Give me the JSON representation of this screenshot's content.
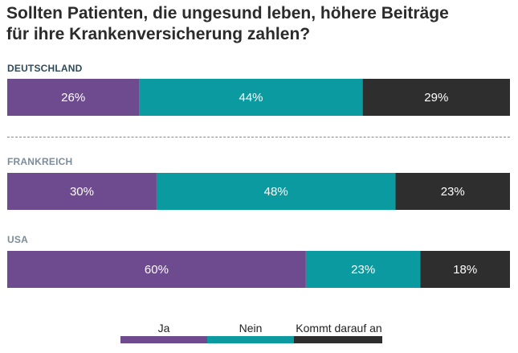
{
  "title_line1": "Sollten Patienten, die ungesund leben, höhere Beiträge",
  "title_line2": "für ihre Krankenversicherung zahlen?",
  "chart_data": {
    "type": "bar",
    "orientation": "horizontal",
    "stacked": true,
    "title": "Sollten Patienten, die ungesund leben, höhere Beiträge für ihre Krankenversicherung zahlen?",
    "categories": [
      "DEUTSCHLAND",
      "FRANKREICH",
      "USA"
    ],
    "series": [
      {
        "name": "Ja",
        "color": "#6e4a8f",
        "values": [
          26,
          30,
          60
        ],
        "labels": [
          "26%",
          "30%",
          "60%"
        ]
      },
      {
        "name": "Nein",
        "color": "#0b9aa0",
        "values": [
          44,
          48,
          23
        ],
        "labels": [
          "44%",
          "48%",
          "23%"
        ]
      },
      {
        "name": "Kommt darauf an",
        "color": "#2e2e2e",
        "values": [
          29,
          23,
          18
        ],
        "labels": [
          "29%",
          "23%",
          "18%"
        ]
      }
    ],
    "category_colors": [
      "#2f4a5a",
      "#7c8c9a",
      "#7c8c9a"
    ],
    "legend_position": "bottom"
  }
}
